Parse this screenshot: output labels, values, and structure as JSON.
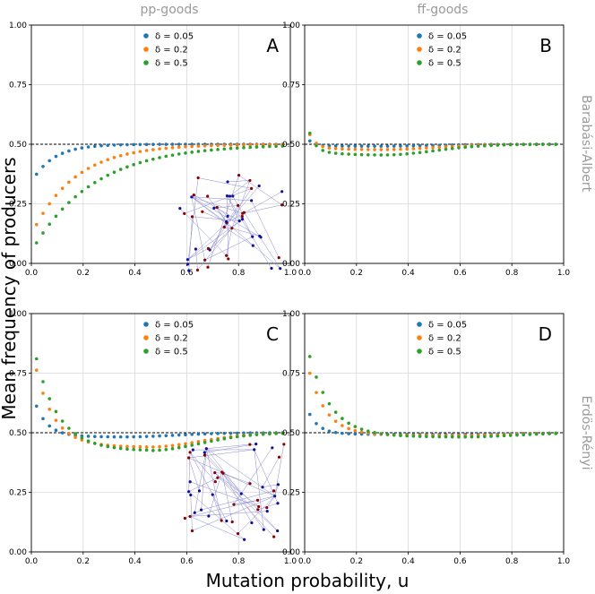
{
  "figure": {
    "ylabel": "Mean frequency of producers",
    "xlabel": "Mutation probability, u",
    "col_titles": [
      "pp-goods",
      "ff-goods"
    ],
    "row_titles": [
      "Barabási-Albert",
      "Erdös-Rényi"
    ]
  },
  "colors": {
    "d005": "#1f77b4",
    "d02": "#ff7f0e",
    "d05": "#2ca02c",
    "node_blue": "#1010a0",
    "node_red": "#8b0000",
    "edge": "#8a8ad0"
  },
  "chart_data": [
    {
      "type": "scatter",
      "panel": "A",
      "xlim": [
        0,
        1
      ],
      "ylim": [
        0,
        1
      ],
      "xticks": [
        "0.0",
        "0.2",
        "0.4",
        "0.6",
        "0.8",
        "1.0"
      ],
      "yticks": [
        "0.00",
        "0.25",
        "0.50",
        "0.75",
        "1.00"
      ],
      "reference_line": 0.5,
      "legend": [
        "δ = 0.05",
        "δ = 0.2",
        "δ = 0.5"
      ],
      "model": [
        [
          0.34,
          2,
          0.5
        ],
        [
          0.12,
          2,
          0.5
        ],
        [
          0.05,
          1.4,
          0.5
        ]
      ]
    },
    {
      "type": "scatter",
      "panel": "B",
      "xlim": [
        0,
        1
      ],
      "ylim": [
        0,
        1
      ],
      "xticks": [
        "0.0",
        "0.2",
        "0.4",
        "0.6",
        "0.8",
        "1.0"
      ],
      "yticks": [
        "0.00",
        "0.25",
        "0.50",
        "0.75",
        "1.00"
      ],
      "reference_line": 0.5,
      "legend": [
        "δ = 0.05",
        "δ = 0.2",
        "δ = 0.5"
      ],
      "model": [
        [
          0.54,
          0.493,
          0.002,
          0.3,
          40
        ],
        [
          0.61,
          0.485,
          0.015,
          0.3,
          40
        ],
        [
          0.65,
          0.47,
          0.03,
          0.3,
          42
        ]
      ]
    },
    {
      "type": "scatter",
      "panel": "C",
      "xlim": [
        0,
        1
      ],
      "ylim": [
        0,
        1
      ],
      "xticks": [
        "0.0",
        "0.2",
        "0.4",
        "0.6",
        "0.8",
        "1.0"
      ],
      "yticks": [
        "0.00",
        "0.25",
        "0.50",
        "0.75",
        "1.00"
      ],
      "reference_line": 0.5,
      "legend": [
        "δ = 0.05",
        "δ = 0.2",
        "δ = 0.5"
      ],
      "model": [
        [
          0.68,
          0.49,
          0.015,
          0.35,
          22
        ],
        [
          0.87,
          0.46,
          0.04,
          0.45,
          15
        ],
        [
          0.91,
          0.45,
          0.05,
          0.45,
          12
        ]
      ]
    },
    {
      "type": "scatter",
      "panel": "D",
      "xlim": [
        0,
        1
      ],
      "ylim": [
        0,
        1
      ],
      "xticks": [
        "0.0",
        "0.2",
        "0.4",
        "0.6",
        "0.8",
        "1.0"
      ],
      "yticks": [
        "0.00",
        "0.25",
        "0.50",
        "0.75",
        "1.00"
      ],
      "reference_line": 0.5,
      "legend": [
        "δ = 0.05",
        "δ = 0.2",
        "δ = 0.5"
      ],
      "model": [
        [
          0.63,
          0.495,
          0.005,
          0.6,
          25
        ],
        [
          0.84,
          0.492,
          0.008,
          0.6,
          15
        ],
        [
          0.91,
          0.488,
          0.012,
          0.6,
          12
        ]
      ]
    }
  ]
}
